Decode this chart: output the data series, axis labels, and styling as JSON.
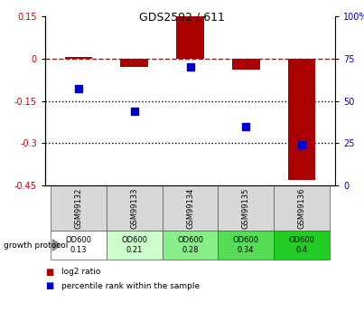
{
  "title": "GDS2592 / 611",
  "samples": [
    "GSM99132",
    "GSM99133",
    "GSM99134",
    "GSM99135",
    "GSM99136"
  ],
  "log2_ratio": [
    0.005,
    -0.03,
    0.15,
    -0.04,
    -0.43
  ],
  "percentile_rank": [
    57,
    44,
    70,
    35,
    24
  ],
  "bar_color": "#AA0000",
  "dot_color": "#0000CC",
  "ylim_left": [
    -0.45,
    0.15
  ],
  "ylim_right": [
    0,
    100
  ],
  "yticks_left": [
    0.15,
    0.0,
    -0.15,
    -0.3,
    -0.45
  ],
  "yticks_right": [
    100,
    75,
    50,
    25,
    0
  ],
  "hline_y": [
    0.0,
    -0.15,
    -0.3
  ],
  "hline_styles": [
    "dashed",
    "dotted",
    "dotted"
  ],
  "hline_colors": [
    "#CC0000",
    "black",
    "black"
  ],
  "protocol_labels": [
    "OD600\n0.13",
    "OD600\n0.21",
    "OD600\n0.28",
    "OD600\n0.34",
    "OD600\n0.4"
  ],
  "protocol_colors": [
    "#ffffff",
    "#ccffcc",
    "#88ee88",
    "#55dd55",
    "#22cc22"
  ],
  "growth_protocol_text": "growth protocol",
  "legend_red": "log2 ratio",
  "legend_blue": "percentile rank within the sample",
  "bar_width": 0.5,
  "dot_size": 40
}
